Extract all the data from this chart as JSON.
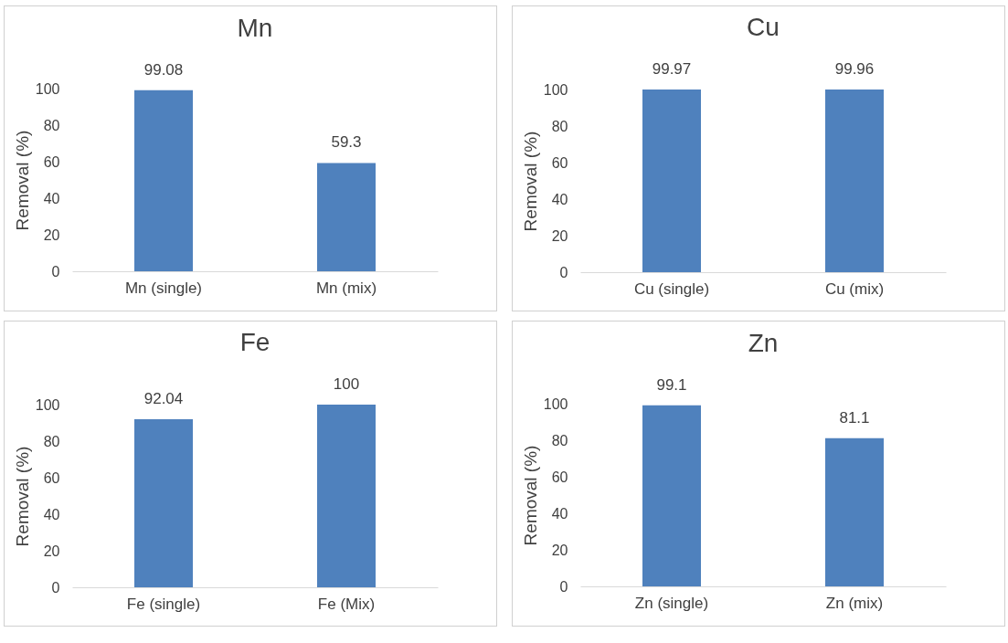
{
  "chart_data": [
    {
      "type": "bar",
      "title": "Mn",
      "ylabel": "Removal (%)",
      "categories": [
        "Mn (single)",
        "Mn (mix)"
      ],
      "values": [
        99.08,
        59.3
      ],
      "color": "#4f81bd",
      "ylim": [
        0,
        100
      ],
      "yticks": [
        0,
        20,
        40,
        60,
        80,
        100
      ],
      "data_labels": true,
      "grid": false
    },
    {
      "type": "bar",
      "title": "Cu",
      "ylabel": "Removal (%)",
      "categories": [
        "Cu (single)",
        "Cu (mix)"
      ],
      "values": [
        99.97,
        99.96
      ],
      "color": "#4f81bd",
      "ylim": [
        0,
        100
      ],
      "yticks": [
        0,
        20,
        40,
        60,
        80,
        100
      ],
      "data_labels": true,
      "grid": false
    },
    {
      "type": "bar",
      "title": "Fe",
      "ylabel": "Removal (%)",
      "categories": [
        "Fe (single)",
        "Fe (Mix)"
      ],
      "values": [
        92.04,
        100
      ],
      "color": "#4f81bd",
      "ylim": [
        0,
        100
      ],
      "yticks": [
        0,
        20,
        40,
        60,
        80,
        100
      ],
      "data_labels": true,
      "grid": false
    },
    {
      "type": "bar",
      "title": "Zn",
      "ylabel": "Removal (%)",
      "categories": [
        "Zn (single)",
        "Zn (mix)"
      ],
      "values": [
        99.1,
        81.1
      ],
      "color": "#4f81bd",
      "ylim": [
        0,
        100
      ],
      "yticks": [
        0,
        20,
        40,
        60,
        80,
        100
      ],
      "data_labels": true,
      "grid": false
    }
  ]
}
